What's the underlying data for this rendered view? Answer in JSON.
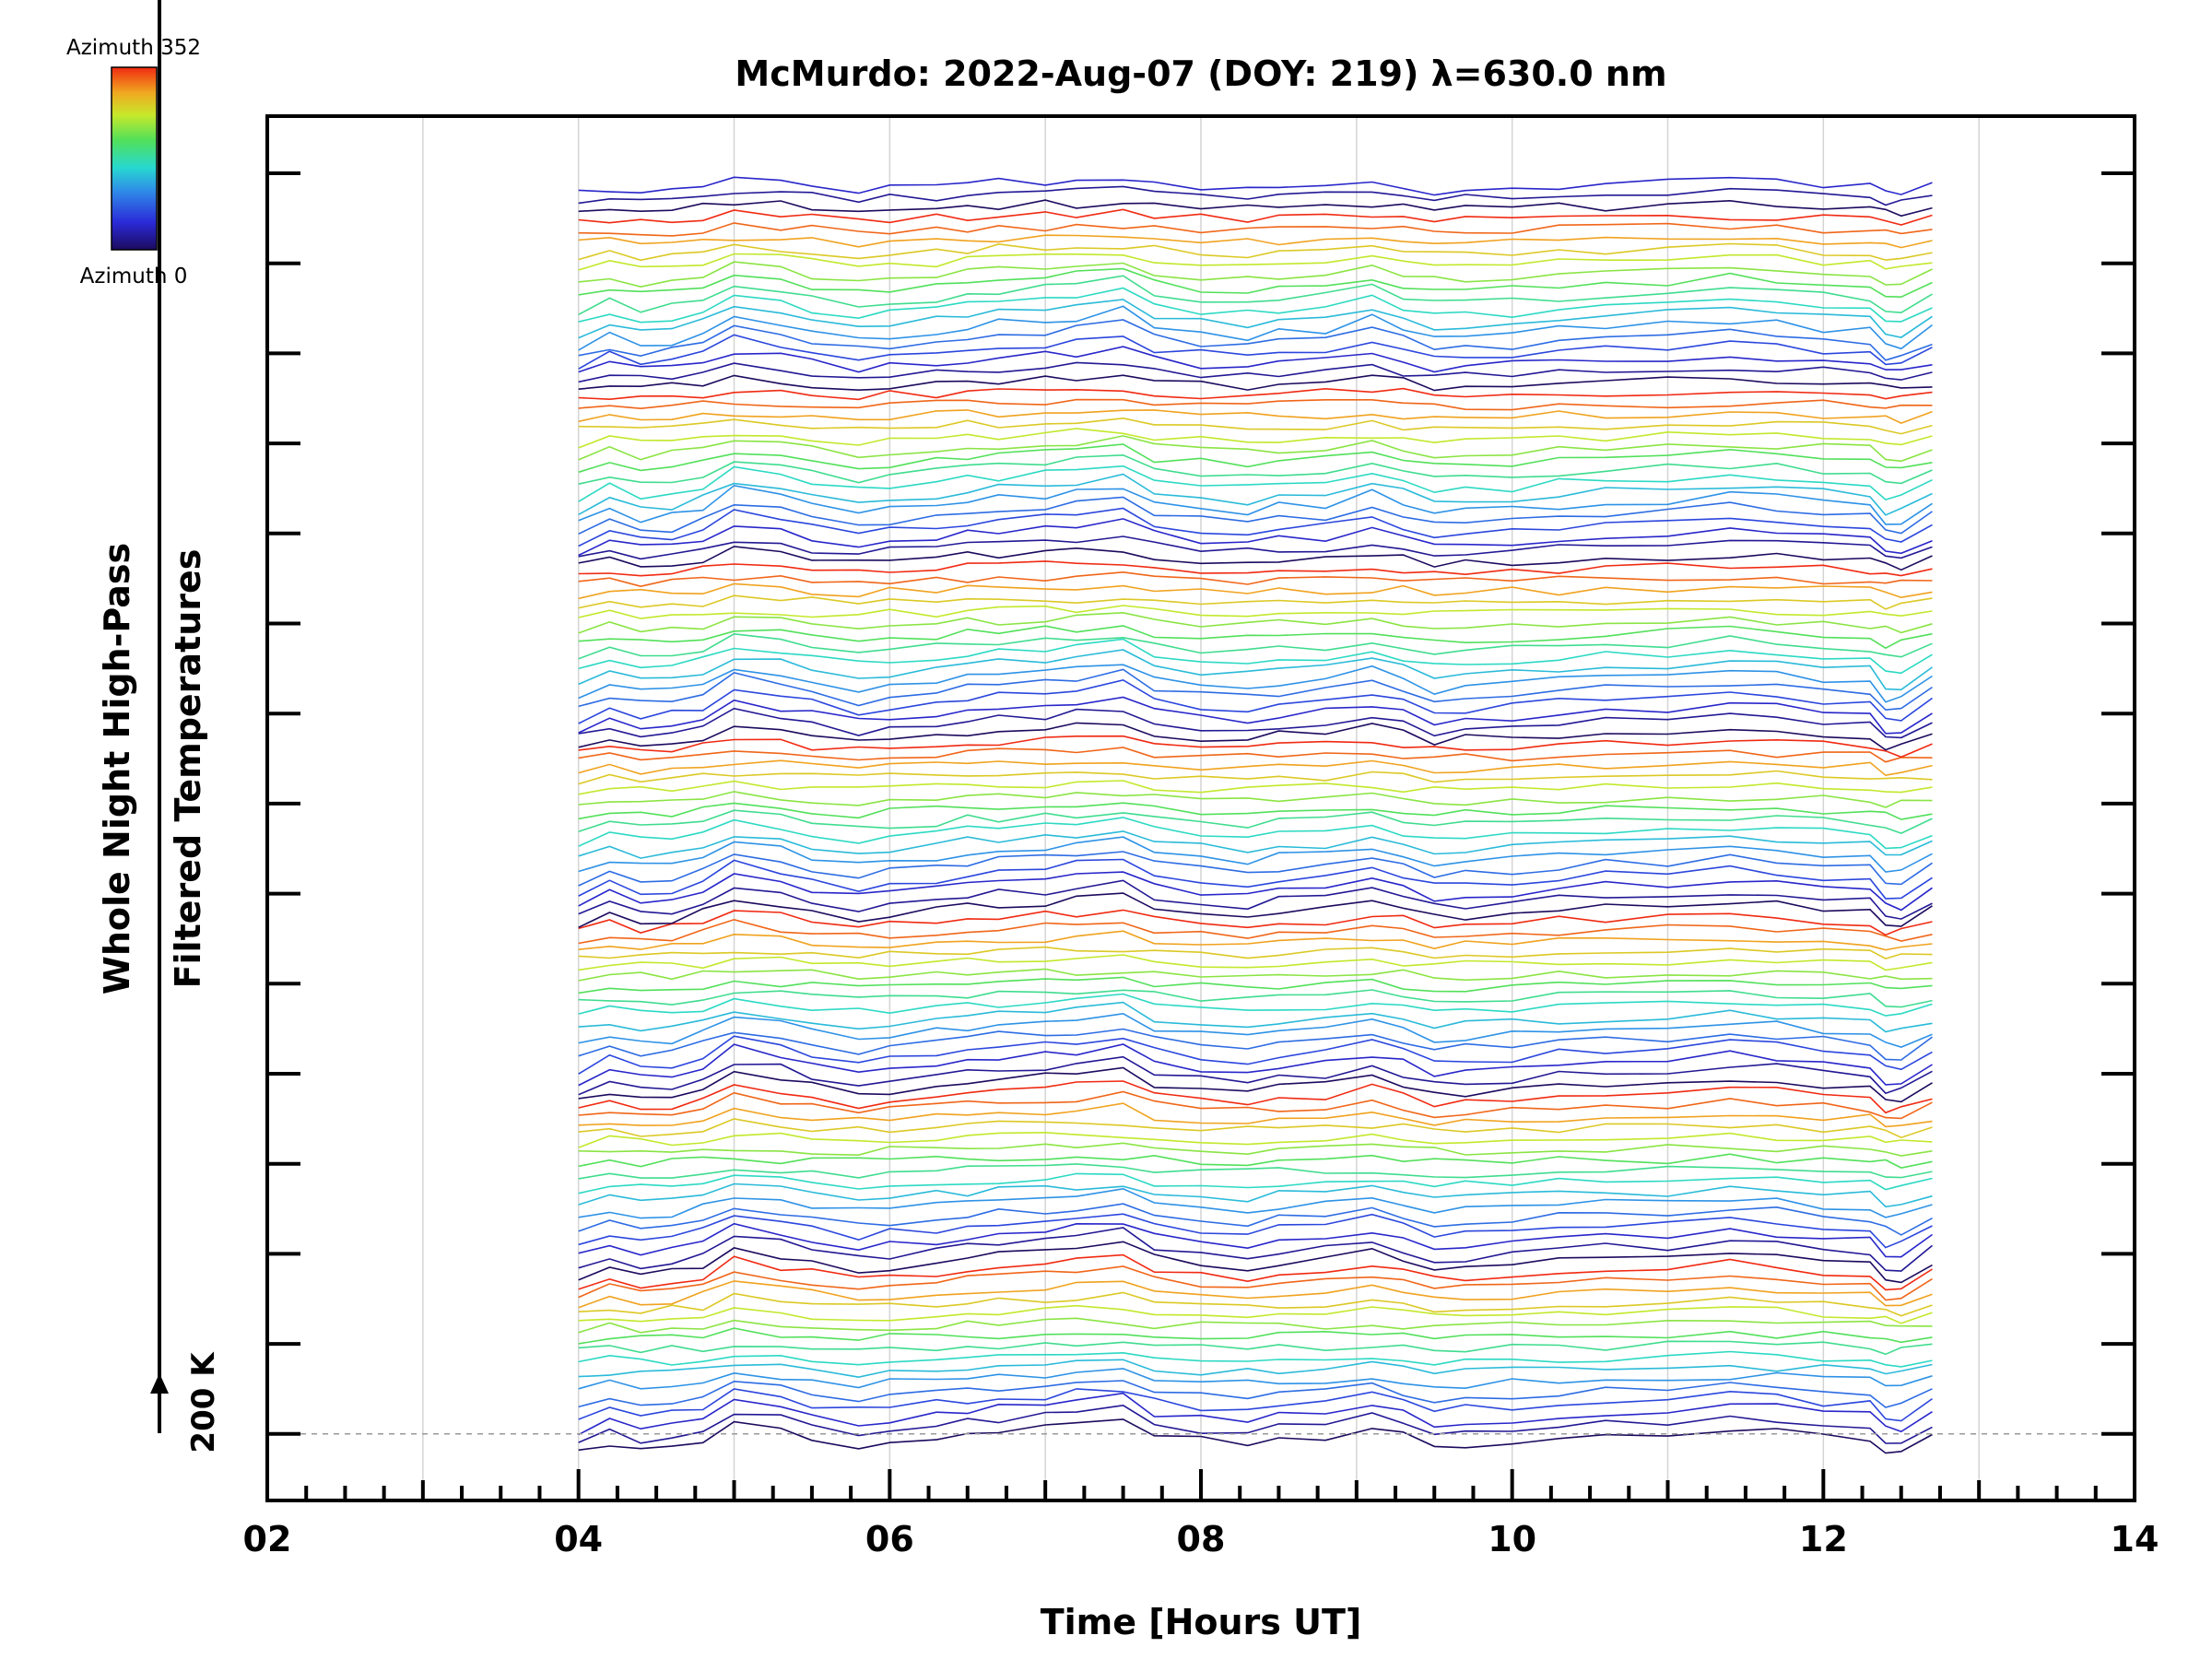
{
  "chart_data": {
    "type": "line",
    "title": "McMurdo: 2022-Aug-07 (DOY: 219) λ=630.0 nm",
    "xlabel": "Time [Hours UT]",
    "ylabel_line1": "Whole Night High-Pass",
    "ylabel_line2": "Filtered Temperatures",
    "xlim": [
      2,
      14
    ],
    "x_ticks": [
      "02",
      "04",
      "06",
      "08",
      "10",
      "12",
      "14"
    ],
    "x_tick_values": [
      2,
      4,
      6,
      8,
      10,
      12,
      14
    ],
    "x_minor_step": 0.25,
    "grid_x": [
      3,
      4,
      5,
      6,
      7,
      8,
      9,
      10,
      11,
      12,
      13
    ],
    "y_major_ticks": 15,
    "y_minor_per_major": 3,
    "baseline_label": "200 K",
    "colorbar": {
      "top_label": "Azimuth 352",
      "bottom_label": "Azimuth 0",
      "colormap": "rainbow"
    },
    "time_range": [
      4.0,
      12.7
    ],
    "sample_times": [
      4.0,
      4.2,
      4.4,
      4.6,
      4.8,
      5.0,
      5.3,
      5.5,
      5.8,
      6.0,
      6.3,
      6.5,
      6.7,
      7.0,
      7.2,
      7.5,
      7.7,
      8.0,
      8.3,
      8.5,
      8.8,
      9.1,
      9.3,
      9.5,
      9.7,
      10.0,
      10.3,
      10.6,
      11.0,
      11.4,
      11.7,
      12.0,
      12.3,
      12.4,
      12.5,
      12.7
    ],
    "series_count": 115,
    "baseline_series": {
      "name": "Azimuth 0",
      "x": [
        4.0,
        4.2,
        4.4,
        4.6,
        4.8,
        5.0,
        5.3,
        5.5,
        5.8,
        6.0,
        6.3,
        6.5,
        6.7,
        7.0,
        7.2,
        7.5,
        7.7,
        8.0,
        8.3,
        8.5,
        8.8,
        9.1,
        9.3,
        9.5,
        9.7,
        10.0,
        10.3,
        10.6,
        11.0,
        11.4,
        11.7,
        12.0,
        12.3,
        12.4,
        12.5,
        12.7
      ],
      "y_offset_K": [
        -25,
        -10,
        -20,
        -18,
        -8,
        15,
        5,
        -5,
        -15,
        -10,
        -5,
        2,
        5,
        8,
        12,
        20,
        0,
        -8,
        -12,
        -5,
        -3,
        10,
        -2,
        -15,
        -12,
        -10,
        -4,
        0,
        2,
        8,
        5,
        -2,
        -5,
        -25,
        -25,
        -3
      ]
    }
  }
}
